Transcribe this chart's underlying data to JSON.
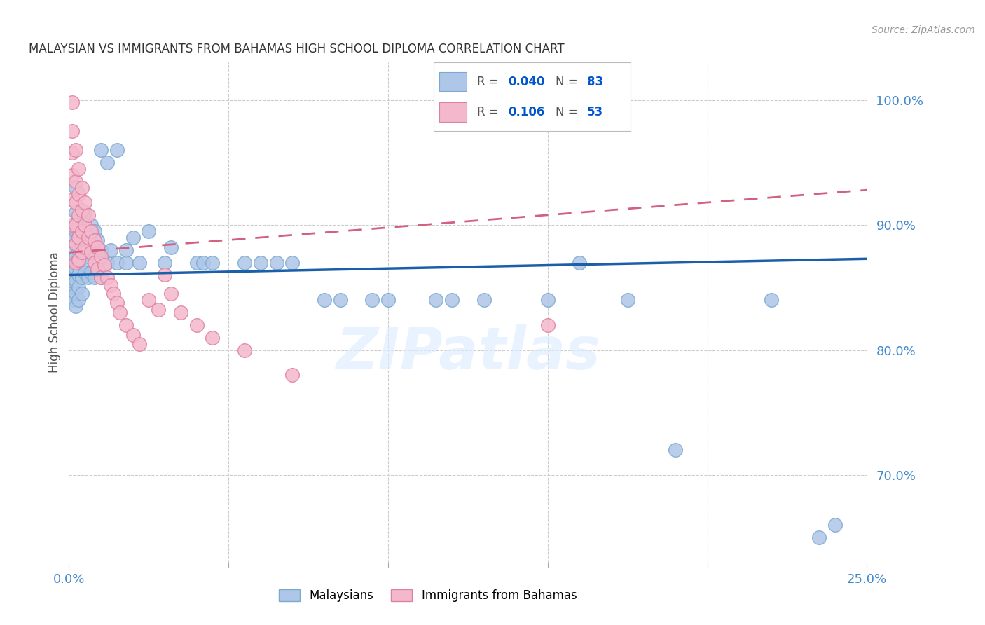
{
  "title": "MALAYSIAN VS IMMIGRANTS FROM BAHAMAS HIGH SCHOOL DIPLOMA CORRELATION CHART",
  "source": "Source: ZipAtlas.com",
  "ylabel": "High School Diploma",
  "watermark": "ZIPatlas",
  "blue_color": "#aec6e8",
  "pink_color": "#f4b8cc",
  "blue_edge_color": "#7aaad0",
  "pink_edge_color": "#e080a0",
  "blue_line_color": "#1a5fa8",
  "pink_line_color": "#d46080",
  "axis_color": "#4488cc",
  "title_color": "#333333",
  "legend_r_color": "#333333",
  "legend_n_color": "#0055cc",
  "background_color": "#ffffff",
  "grid_color": "#cccccc",
  "ytick_labels": [
    "70.0%",
    "80.0%",
    "90.0%",
    "100.0%"
  ],
  "ytick_values": [
    0.7,
    0.8,
    0.9,
    1.0
  ],
  "blue_trend": [
    0.0,
    0.25,
    0.86,
    0.873
  ],
  "pink_trend": [
    0.0,
    0.25,
    0.878,
    0.928
  ]
}
